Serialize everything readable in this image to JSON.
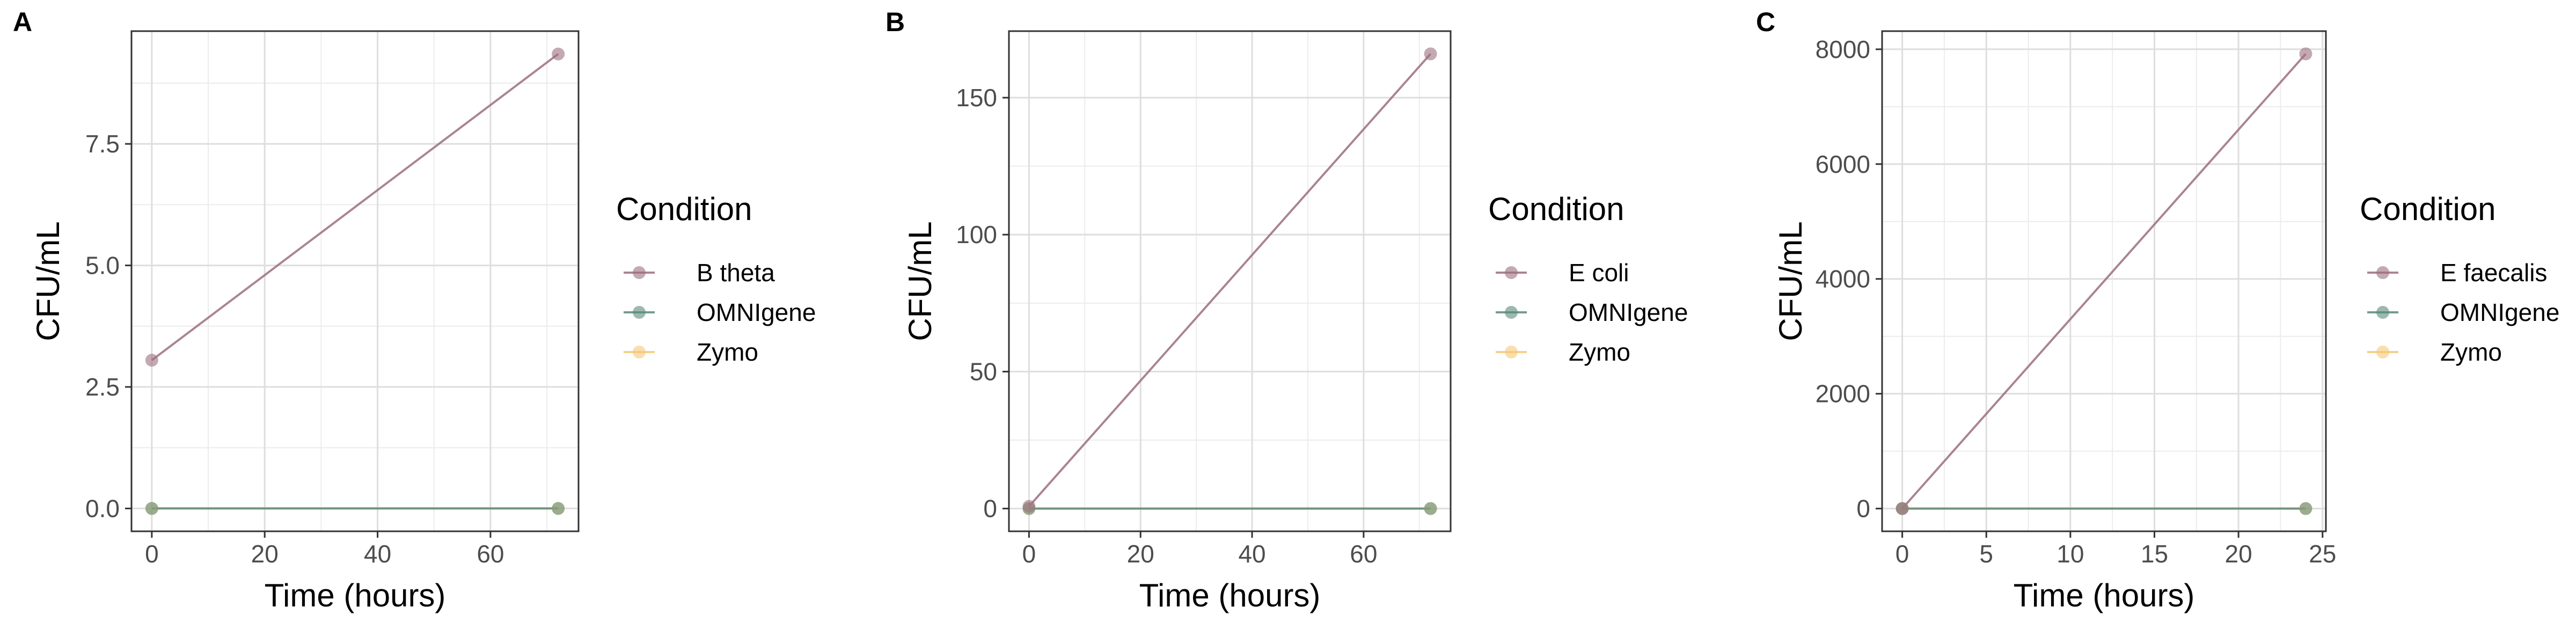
{
  "chart_data": [
    {
      "type": "line",
      "panel_label": "A",
      "xlabel": "Time (hours)",
      "ylabel": "CFU/mL",
      "xlim": [
        -3.6,
        75.6
      ],
      "ylim": [
        -0.47,
        9.82
      ],
      "x_ticks": [
        0,
        20,
        40,
        60
      ],
      "y_ticks": [
        0.0,
        2.5,
        5.0,
        7.5
      ],
      "y_tick_labels": [
        "0.0",
        "2.5",
        "5.0",
        "7.5"
      ],
      "grid": true,
      "legend_title": "Condition",
      "legend_position": "right",
      "series": [
        {
          "name": "B theta",
          "color": "#9c6f7e",
          "x": [
            0,
            72
          ],
          "y": [
            3.05,
            9.35
          ]
        },
        {
          "name": "OMNIgene",
          "color": "#5b8a7a",
          "x": [
            0,
            72
          ],
          "y": [
            0,
            0
          ]
        },
        {
          "name": "Zymo",
          "color": "#f5c878",
          "x": [
            0,
            72
          ],
          "y": [
            0,
            0
          ]
        }
      ]
    },
    {
      "type": "line",
      "panel_label": "B",
      "xlabel": "Time (hours)",
      "ylabel": "CFU/mL",
      "xlim": [
        -3.6,
        75.6
      ],
      "ylim": [
        -8.3,
        174.3
      ],
      "x_ticks": [
        0,
        20,
        40,
        60
      ],
      "y_ticks": [
        0,
        50,
        100,
        150
      ],
      "y_tick_labels": [
        "0",
        "50",
        "100",
        "150"
      ],
      "grid": true,
      "legend_title": "Condition",
      "legend_position": "right",
      "series": [
        {
          "name": "E coli",
          "color": "#9c6f7e",
          "x": [
            0,
            72
          ],
          "y": [
            0.8,
            166
          ]
        },
        {
          "name": "OMNIgene",
          "color": "#5b8a7a",
          "x": [
            0,
            72
          ],
          "y": [
            0,
            0
          ]
        },
        {
          "name": "Zymo",
          "color": "#f5c878",
          "x": [
            0,
            72
          ],
          "y": [
            0,
            0
          ]
        }
      ]
    },
    {
      "type": "line",
      "panel_label": "C",
      "xlabel": "Time (hours)",
      "ylabel": "CFU/mL",
      "xlim": [
        -1.2,
        25.2
      ],
      "ylim": [
        -396,
        8316
      ],
      "x_ticks": [
        0,
        5,
        10,
        15,
        20,
        25
      ],
      "y_ticks": [
        0,
        2000,
        4000,
        6000,
        8000
      ],
      "y_tick_labels": [
        "0",
        "2000",
        "4000",
        "6000",
        "8000"
      ],
      "grid": true,
      "legend_title": "Condition",
      "legend_position": "right",
      "series": [
        {
          "name": "E faecalis",
          "color": "#9c6f7e",
          "x": [
            0,
            24
          ],
          "y": [
            0,
            7920
          ]
        },
        {
          "name": "OMNIgene",
          "color": "#5b8a7a",
          "x": [
            0,
            24
          ],
          "y": [
            0,
            0
          ]
        },
        {
          "name": "Zymo",
          "color": "#f5c878",
          "x": [
            0,
            24
          ],
          "y": [
            0,
            0
          ]
        }
      ]
    }
  ]
}
